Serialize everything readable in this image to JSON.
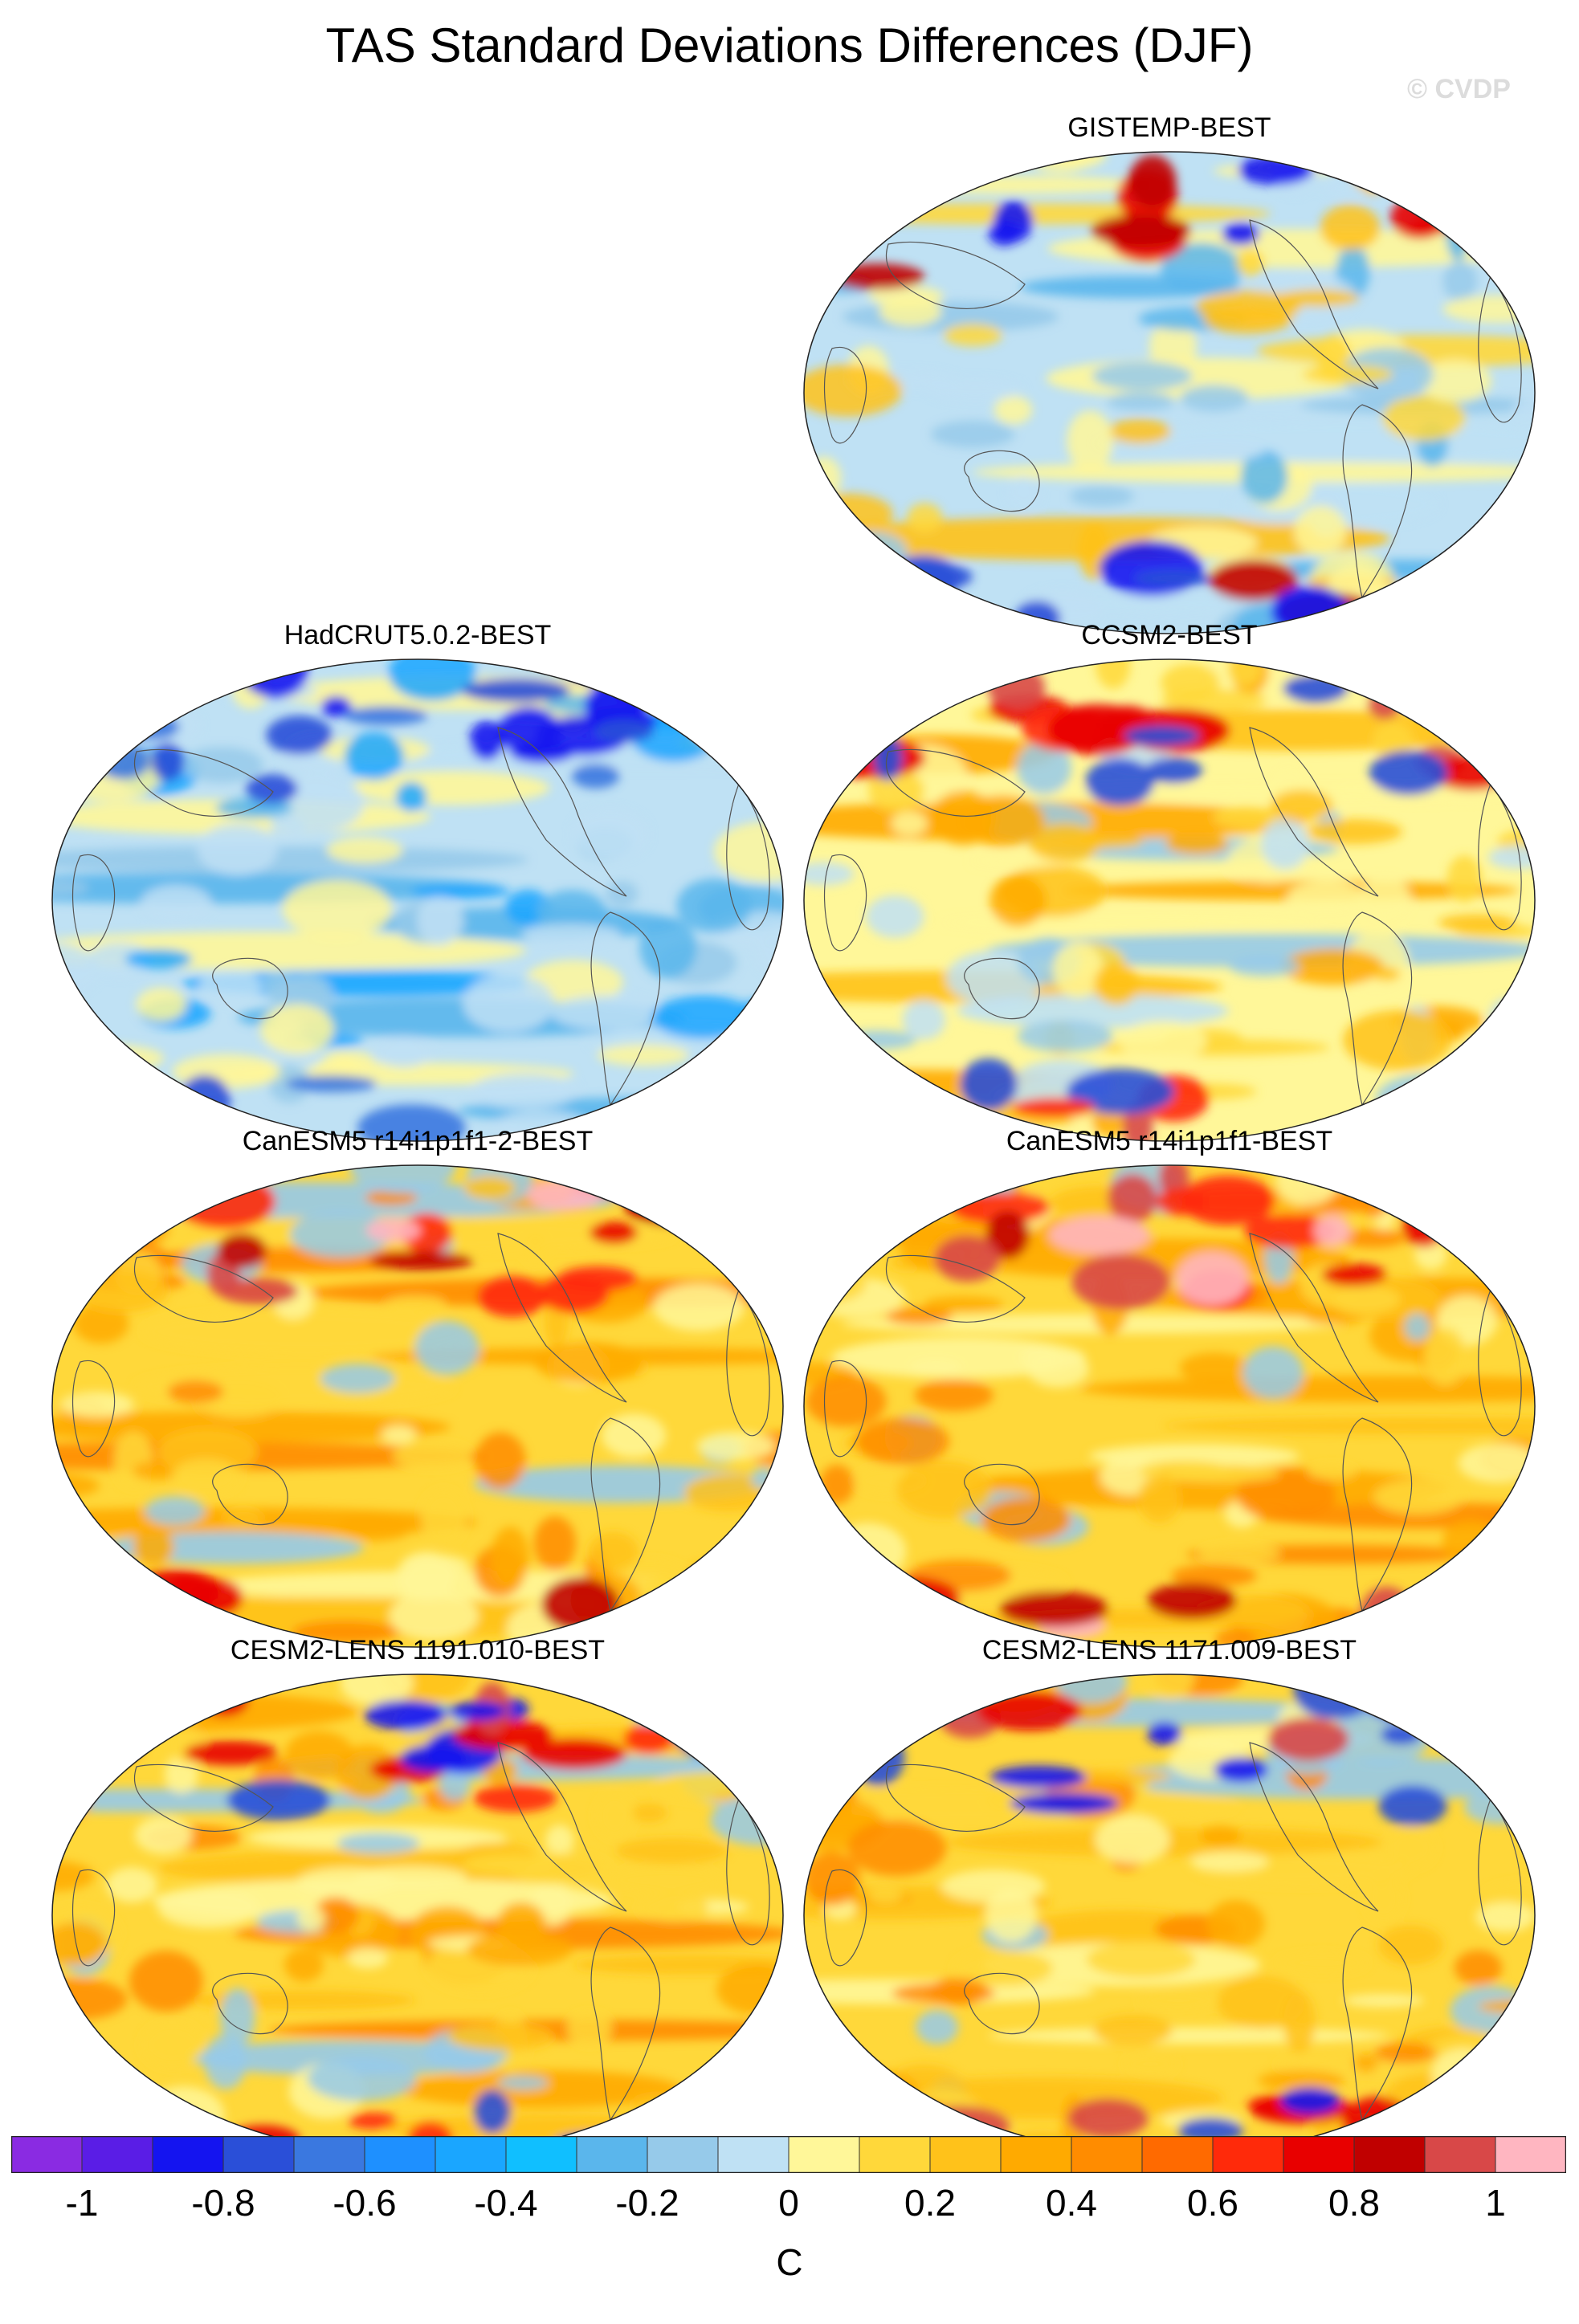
{
  "figure": {
    "title": "TAS Standard Deviations Differences (DJF)",
    "watermark": "© CVDP"
  },
  "panels": [
    {
      "id": "gistemp",
      "title": "GISTEMP-BEST",
      "style": "obs_mixed"
    },
    {
      "id": "hadcrut",
      "title": "HadCRUT5.0.2-BEST",
      "style": "obs_negative"
    },
    {
      "id": "ccsm2",
      "title": "CCSM2-BEST",
      "style": "model_mixed"
    },
    {
      "id": "canesm5_2",
      "title": "CanESM5 r14i1p1f1-2-BEST",
      "style": "model_positive"
    },
    {
      "id": "canesm5",
      "title": "CanESM5 r14i1p1f1-BEST",
      "style": "model_positive"
    },
    {
      "id": "cesm2_1191",
      "title": "CESM2-LENS 1191.010-BEST",
      "style": "model_warm"
    },
    {
      "id": "cesm2_1171",
      "title": "CESM2-LENS 1171.009-BEST",
      "style": "model_warm"
    }
  ],
  "colorbar": {
    "unit": "C",
    "min": -1.1,
    "max": 1.1,
    "bins": [
      -1.1,
      -1.0,
      -0.9,
      -0.8,
      -0.7,
      -0.6,
      -0.5,
      -0.4,
      -0.3,
      -0.2,
      -0.1,
      0,
      0.1,
      0.2,
      0.3,
      0.4,
      0.5,
      0.6,
      0.7,
      0.8,
      0.9,
      1.0,
      1.1
    ],
    "colors": [
      "#8a2be2",
      "#5a1de6",
      "#1414f0",
      "#2a4fd8",
      "#3a78e0",
      "#1e90ff",
      "#1aa6ff",
      "#10bfff",
      "#5ab6ec",
      "#96caea",
      "#bfe1f4",
      "#fff799",
      "#ffd83a",
      "#ffc21a",
      "#ffaa00",
      "#ff8c00",
      "#ff6a00",
      "#ff2a0a",
      "#e80000",
      "#c00000",
      "#d84848",
      "#ffb6c1"
    ],
    "tick_labels": [
      "-1",
      "-0.8",
      "-0.6",
      "-0.4",
      "-0.2",
      "0",
      "0.2",
      "0.4",
      "0.6",
      "0.8",
      "1"
    ]
  }
}
